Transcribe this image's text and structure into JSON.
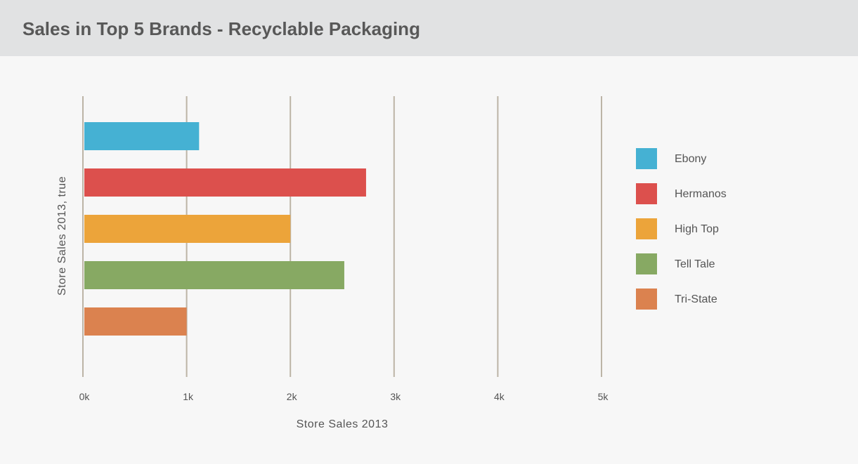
{
  "title": "Sales in Top 5 Brands - Recyclable Packaging",
  "chart_data": {
    "type": "bar",
    "orientation": "horizontal",
    "title": "Sales in Top 5 Brands - Recyclable Packaging",
    "xlabel": "Store Sales 2013",
    "ylabel": "Store Sales 2013, true",
    "xlim": [
      0,
      5000
    ],
    "xticks": [
      0,
      1000,
      2000,
      3000,
      4000,
      5000
    ],
    "xtick_labels": [
      "0k",
      "1k",
      "2k",
      "3k",
      "4k",
      "5k"
    ],
    "grid": "vertical",
    "legend_position": "right",
    "categories": [
      "Ebony",
      "Hermanos",
      "High Top",
      "Tell Tale",
      "Tri-State"
    ],
    "values": [
      1120,
      2730,
      2000,
      2520,
      1000
    ],
    "colors": [
      "#45b1d3",
      "#dc504d",
      "#eca43a",
      "#87a963",
      "#db824f"
    ]
  }
}
